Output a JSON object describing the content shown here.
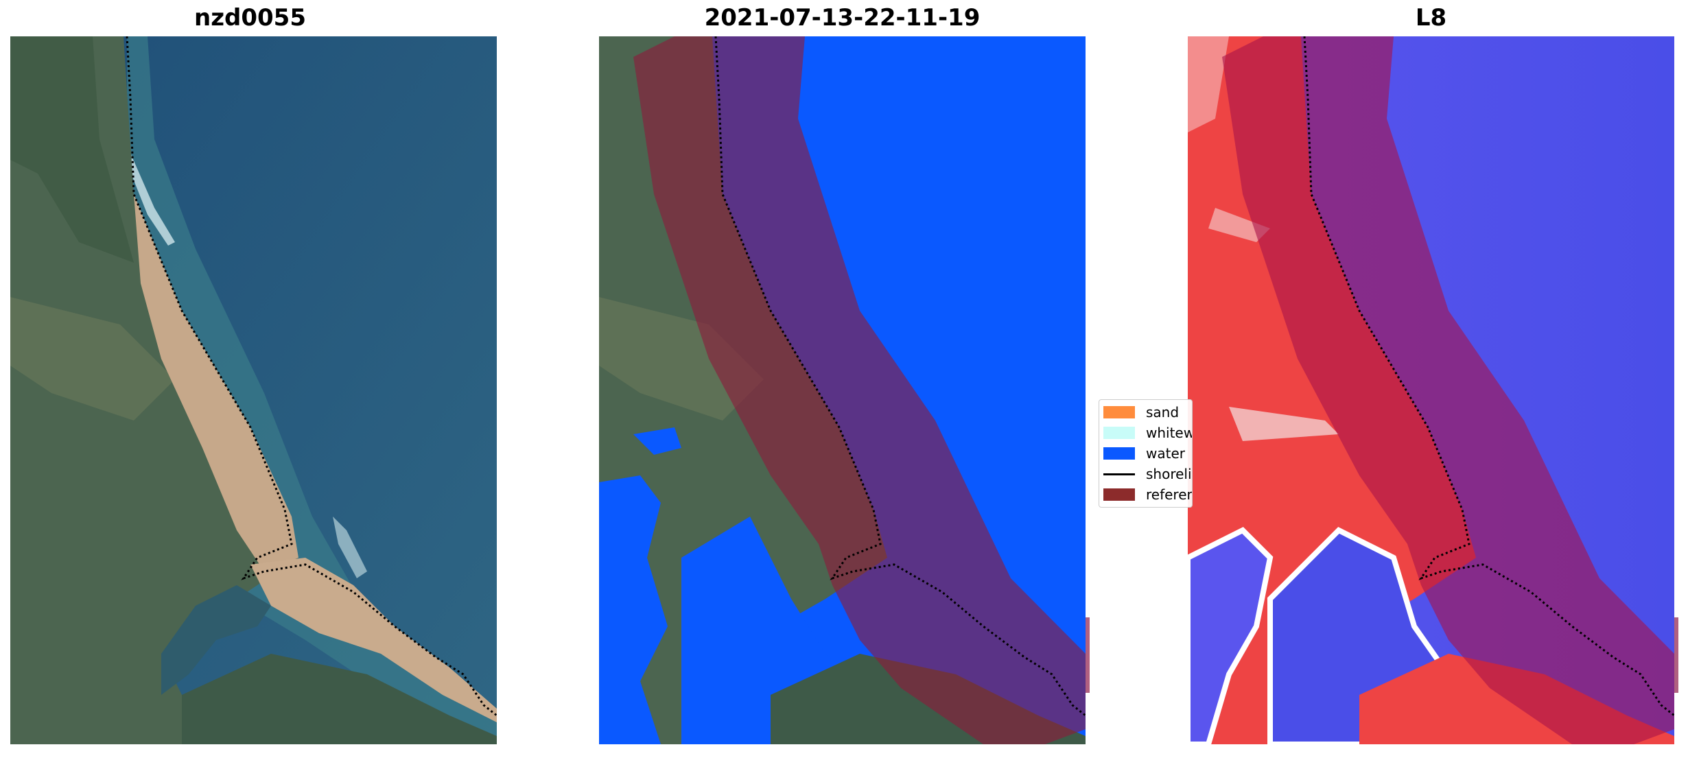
{
  "panels": [
    {
      "title": "nzd0055",
      "kind": "rgb"
    },
    {
      "title": "2021-07-13-22-11-19",
      "kind": "classified"
    },
    {
      "title": "L8",
      "kind": "index"
    }
  ],
  "legend": {
    "items": [
      {
        "label": "sand",
        "color": "#ff8c3c",
        "type": "patch"
      },
      {
        "label": "whitewater",
        "color": "#c8fcf8",
        "type": "patch"
      },
      {
        "label": "water",
        "color": "#0a59ff",
        "type": "patch"
      },
      {
        "label": "shoreline",
        "color": "#000000",
        "type": "line"
      },
      {
        "label": "reference",
        "color": "#8c2b2b",
        "type": "patch"
      }
    ]
  },
  "colors": {
    "ocean": "#265880",
    "land": "#4f6552",
    "sand_beach": "#c8aa8c",
    "water_class": "#0a59ff",
    "buffer_overlay": "#8c1c3c",
    "index_land": "#ee4444",
    "index_water": "#5050ee"
  }
}
